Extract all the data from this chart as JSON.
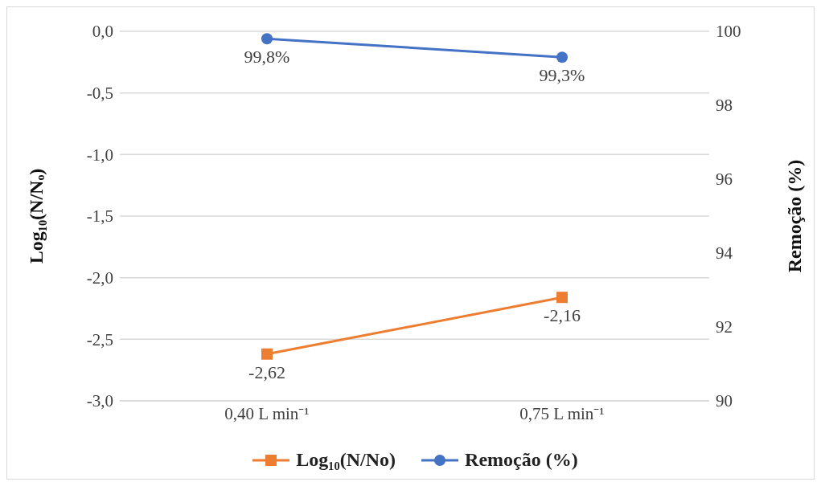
{
  "chart_data": {
    "type": "line",
    "categories": [
      "0,40 L min⁻¹",
      "0,75 L min⁻¹"
    ],
    "ylabel": "Log₁₀(N/Nₒ)",
    "y2label": "Remoção (%)",
    "ylim": [
      -3,
      0
    ],
    "yticks": [
      {
        "value": -3,
        "label": "-3,0"
      },
      {
        "value": -2.5,
        "label": "-2,5"
      },
      {
        "value": -2,
        "label": "-2,0"
      },
      {
        "value": -1.5,
        "label": "-1,5"
      },
      {
        "value": -1,
        "label": "-1,0"
      },
      {
        "value": -0.5,
        "label": "-0,5"
      },
      {
        "value": 0,
        "label": "0,0"
      }
    ],
    "y2lim": [
      90,
      100
    ],
    "y2ticks": [
      90,
      92,
      94,
      96,
      98,
      100
    ],
    "series": [
      {
        "name": "Log₁₀(N/No)",
        "color": "#ed7d31",
        "values": [
          -2.62,
          -2.16
        ],
        "value_labels": [
          "-2,62",
          "-2,16"
        ],
        "marker": "square"
      },
      {
        "name": "Remoção (%)",
        "color": "#4472c4",
        "values": [
          99.8,
          99.3
        ],
        "value_labels": [
          "99,8%",
          "99,3%"
        ],
        "marker": "circle",
        "axis": "y2"
      }
    ],
    "grid": "y",
    "legend": "bottom"
  }
}
